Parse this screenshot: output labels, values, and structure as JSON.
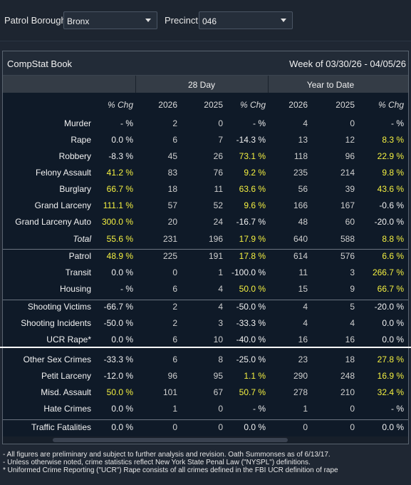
{
  "filters": {
    "borough_label": "Patrol Borough:",
    "borough_value": "Bronx",
    "precinct_label": "Precinct:",
    "precinct_value": "046"
  },
  "panel": {
    "title": "CompStat Book",
    "week": "Week of 03/30/26 - 04/05/26",
    "group_28day": "28 Day",
    "group_ytd": "Year to Date"
  },
  "columns": [
    "% Chg",
    "2026",
    "2025",
    "% Chg",
    "2026",
    "2025",
    "% Chg"
  ],
  "rows": [
    {
      "label": "Murder",
      "v": [
        "- %",
        "2",
        "0",
        "- %",
        "4",
        "0",
        "- %"
      ],
      "hl": [
        0,
        0,
        0,
        0,
        0,
        0,
        0
      ]
    },
    {
      "label": "Rape",
      "v": [
        "0.0 %",
        "6",
        "7",
        "-14.3 %",
        "13",
        "12",
        "8.3 %"
      ],
      "hl": [
        0,
        0,
        0,
        0,
        0,
        0,
        1
      ]
    },
    {
      "label": "Robbery",
      "v": [
        "-8.3 %",
        "45",
        "26",
        "73.1 %",
        "118",
        "96",
        "22.9 %"
      ],
      "hl": [
        0,
        0,
        0,
        1,
        0,
        0,
        1
      ]
    },
    {
      "label": "Felony Assault",
      "v": [
        "41.2 %",
        "83",
        "76",
        "9.2 %",
        "235",
        "214",
        "9.8 %"
      ],
      "hl": [
        1,
        0,
        0,
        1,
        0,
        0,
        1
      ]
    },
    {
      "label": "Burglary",
      "v": [
        "66.7 %",
        "18",
        "11",
        "63.6 %",
        "56",
        "39",
        "43.6 %"
      ],
      "hl": [
        1,
        0,
        0,
        1,
        0,
        0,
        1
      ]
    },
    {
      "label": "Grand Larceny",
      "v": [
        "111.1 %",
        "57",
        "52",
        "9.6 %",
        "166",
        "167",
        "-0.6 %"
      ],
      "hl": [
        1,
        0,
        0,
        1,
        0,
        0,
        0
      ]
    },
    {
      "label": "Grand Larceny Auto",
      "v": [
        "300.0 %",
        "20",
        "24",
        "-16.7 %",
        "48",
        "60",
        "-20.0 %"
      ],
      "hl": [
        1,
        0,
        0,
        0,
        0,
        0,
        0
      ]
    },
    {
      "label": "Total",
      "v": [
        "55.6 %",
        "231",
        "196",
        "17.9 %",
        "640",
        "588",
        "8.8 %"
      ],
      "hl": [
        1,
        0,
        0,
        1,
        0,
        0,
        1
      ],
      "italic": true
    },
    {
      "label": "Patrol",
      "v": [
        "48.9 %",
        "225",
        "191",
        "17.8 %",
        "614",
        "576",
        "6.6 %"
      ],
      "hl": [
        1,
        0,
        0,
        1,
        0,
        0,
        1
      ]
    },
    {
      "label": "Transit",
      "v": [
        "0.0 %",
        "0",
        "1",
        "-100.0 %",
        "11",
        "3",
        "266.7 %"
      ],
      "hl": [
        0,
        0,
        0,
        0,
        0,
        0,
        1
      ]
    },
    {
      "label": "Housing",
      "v": [
        "- %",
        "6",
        "4",
        "50.0 %",
        "15",
        "9",
        "66.7 %"
      ],
      "hl": [
        0,
        0,
        0,
        1,
        0,
        0,
        1
      ]
    },
    {
      "label": "Shooting Victims",
      "v": [
        "-66.7 %",
        "2",
        "4",
        "-50.0 %",
        "4",
        "5",
        "-20.0 %"
      ],
      "hl": [
        0,
        0,
        0,
        0,
        0,
        0,
        0
      ]
    },
    {
      "label": "Shooting Incidents",
      "v": [
        "-50.0 %",
        "2",
        "3",
        "-33.3 %",
        "4",
        "4",
        "0.0 %"
      ],
      "hl": [
        0,
        0,
        0,
        0,
        0,
        0,
        0
      ]
    },
    {
      "label": "UCR Rape*",
      "v": [
        "0.0 %",
        "6",
        "10",
        "-40.0 %",
        "16",
        "16",
        "0.0 %"
      ],
      "hl": [
        0,
        0,
        0,
        0,
        0,
        0,
        0
      ]
    },
    {
      "label": "Other Sex Crimes",
      "v": [
        "-33.3 %",
        "6",
        "8",
        "-25.0 %",
        "23",
        "18",
        "27.8 %"
      ],
      "hl": [
        0,
        0,
        0,
        0,
        0,
        0,
        1
      ]
    },
    {
      "label": "Petit Larceny",
      "v": [
        "-12.0 %",
        "96",
        "95",
        "1.1 %",
        "290",
        "248",
        "16.9 %"
      ],
      "hl": [
        0,
        0,
        0,
        1,
        0,
        0,
        1
      ]
    },
    {
      "label": "Misd. Assault",
      "v": [
        "50.0 %",
        "101",
        "67",
        "50.7 %",
        "278",
        "210",
        "32.4 %"
      ],
      "hl": [
        1,
        0,
        0,
        1,
        0,
        0,
        1
      ]
    },
    {
      "label": "Hate Crimes",
      "v": [
        "0.0 %",
        "1",
        "0",
        "- %",
        "1",
        "0",
        "- %"
      ],
      "hl": [
        0,
        0,
        0,
        0,
        0,
        0,
        0
      ]
    },
    {
      "label": "Traffic Fatalities",
      "v": [
        "0.0 %",
        "0",
        "0",
        "0.0 %",
        "0",
        "0",
        "0.0 %"
      ],
      "hl": [
        0,
        0,
        0,
        0,
        0,
        0,
        0
      ]
    }
  ],
  "footnotes": [
    "- All figures are preliminary and subject to further analysis and revision. Oath Summonses as of 6/13/17.",
    "- Unless otherwise noted, crime statistics reflect New York State Penal Law (\"NYSPL\") definitions.",
    "* Uniformed Crime Reporting (\"UCR\") Rape consists of all crimes defined in the FBI UCR definition of rape"
  ],
  "colors": {
    "highlight": "#f4f040",
    "panel_bg": "#0f1a28",
    "header_bg": "#343c46"
  }
}
